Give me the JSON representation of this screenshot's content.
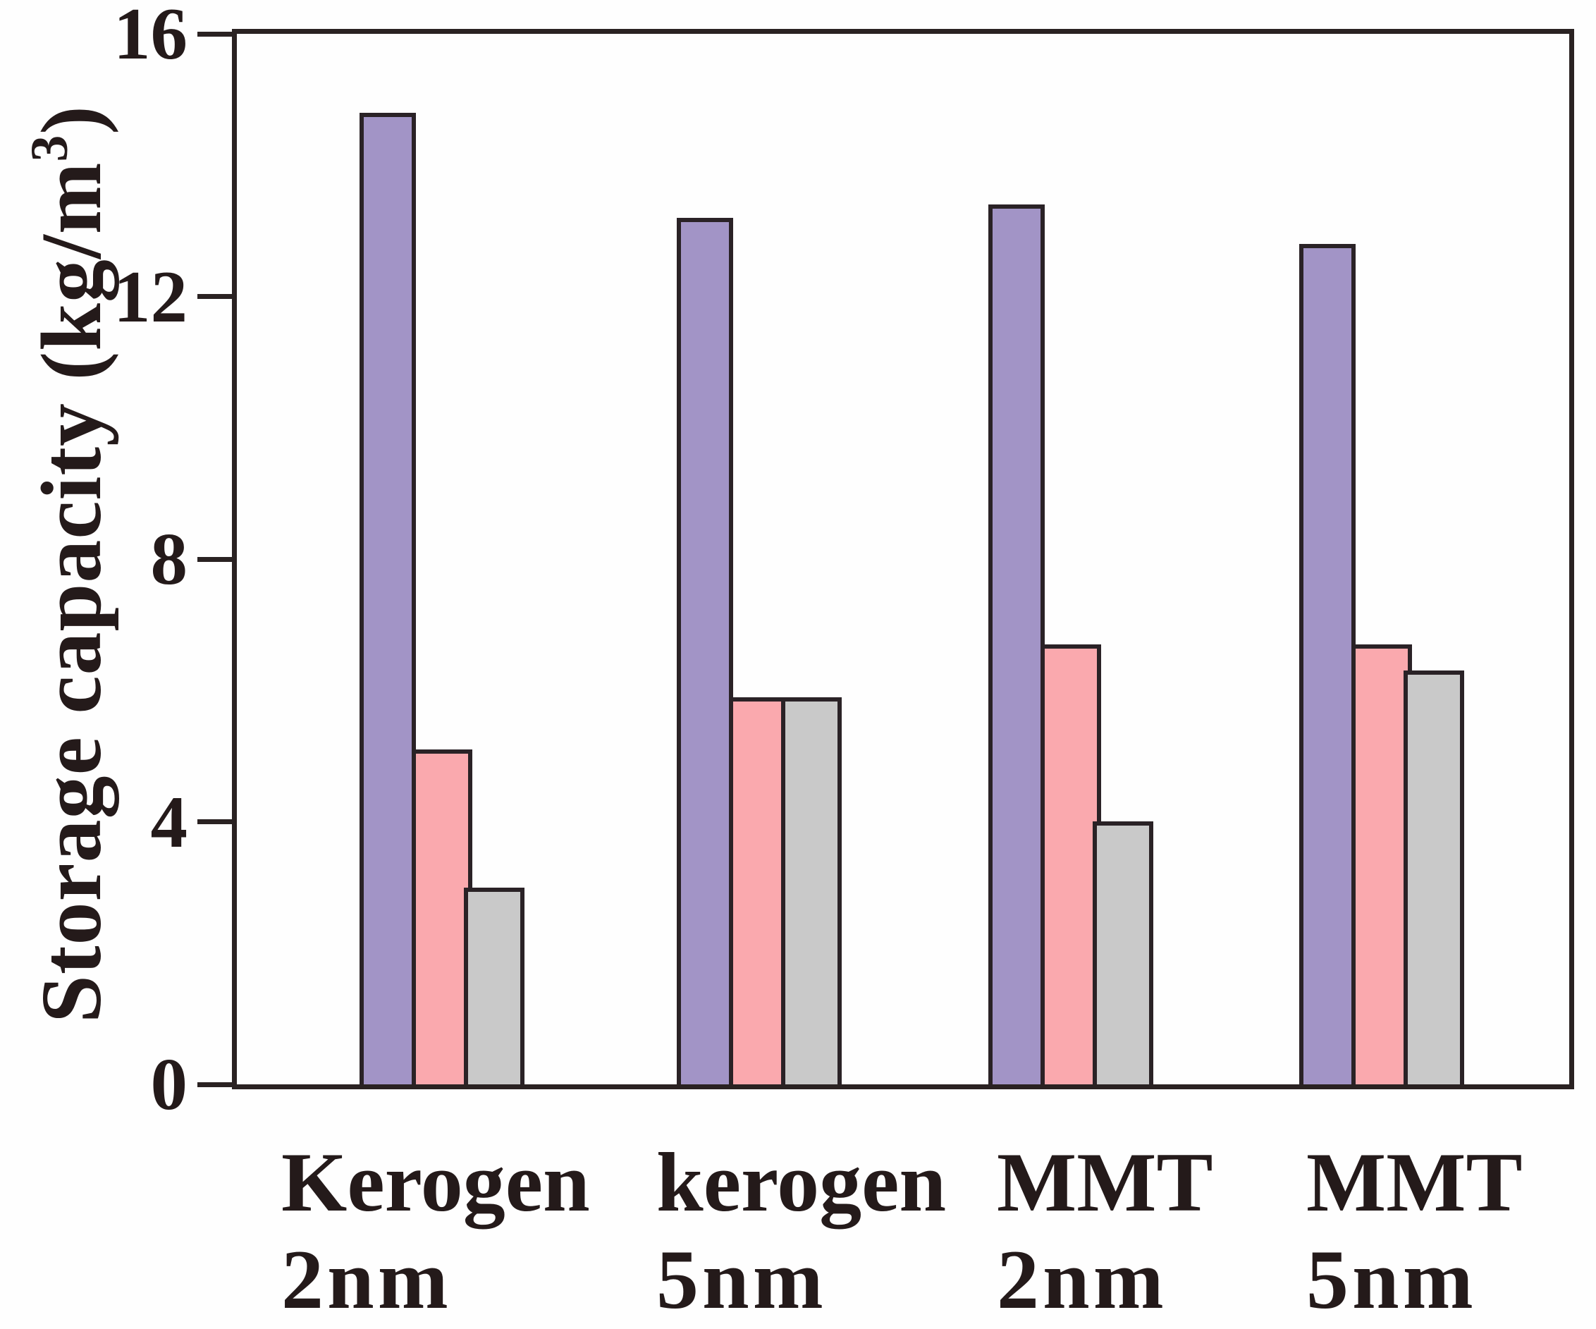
{
  "figure": {
    "background": "#fefefe",
    "ink_color": "#241a1a",
    "frame_color": "#2a2222"
  },
  "chart_data": {
    "type": "bar",
    "title": "",
    "categories": [
      {
        "line1": "Kerogen",
        "line2": "2nm"
      },
      {
        "line1": "kerogen",
        "line2": "5nm"
      },
      {
        "line1": "MMT",
        "line2": "2nm"
      },
      {
        "line1": "MMT",
        "line2": "5nm"
      }
    ],
    "series": [
      {
        "name": "purple-series",
        "color": "#a294c6",
        "values": [
          14.8,
          13.2,
          13.4,
          12.8
        ]
      },
      {
        "name": "pink-series",
        "color": "#faa9ae",
        "values": [
          5.1,
          5.9,
          6.7,
          6.7
        ]
      },
      {
        "name": "gray-series",
        "color": "#c9c9c9",
        "values": [
          3.0,
          5.9,
          4.0,
          6.3
        ]
      }
    ],
    "ylabel_main": "Storage capacity (kg/m",
    "ylabel_sup": "3",
    "ylabel_close": ")",
    "xlabel": "",
    "yticks": [
      0,
      4,
      8,
      12,
      16
    ],
    "ylim": [
      0,
      16
    ],
    "grid": false,
    "legend": "none"
  }
}
